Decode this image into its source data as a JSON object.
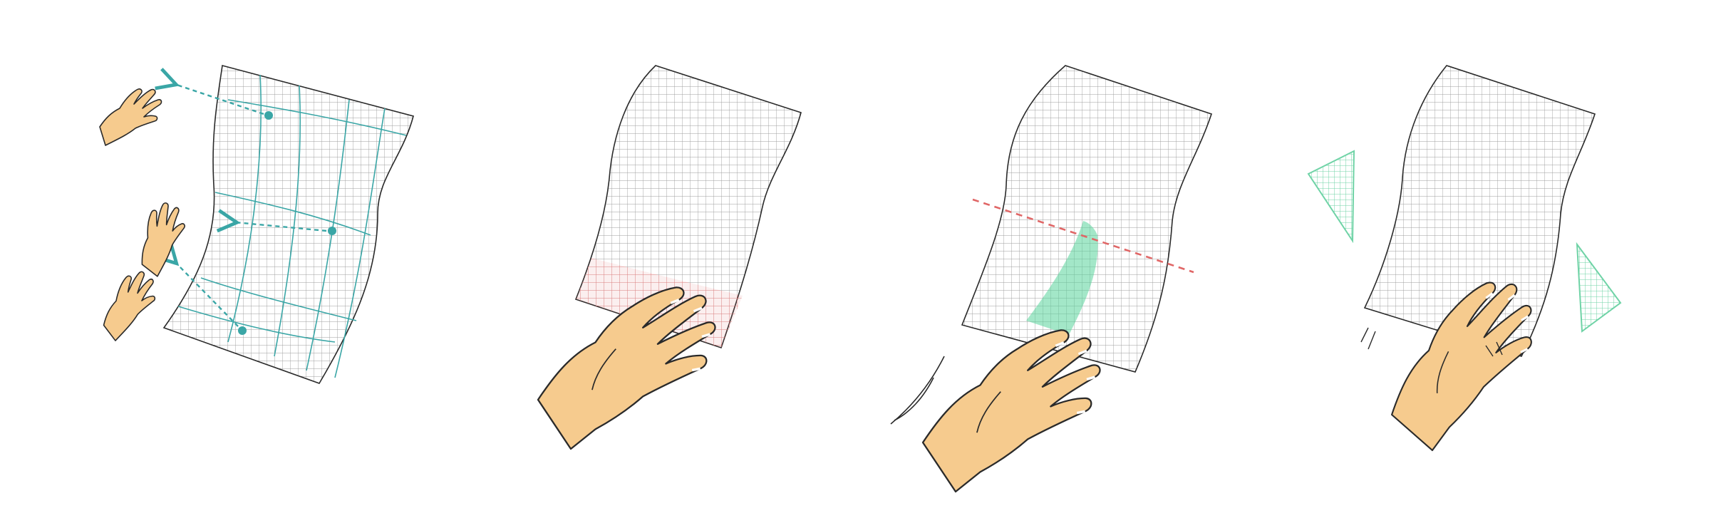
{
  "figure": {
    "panels": [
      {
        "id": "panel-1",
        "grid_color": "#9e9e9e",
        "overlay": "teal-deformation-grid",
        "arrow_color": "#3aa6a6",
        "hand_count": 3
      },
      {
        "id": "panel-2",
        "grid_color": "#9e9e9e",
        "highlight": "bottom-band",
        "highlight_color": "#e07a7a"
      },
      {
        "id": "panel-3",
        "grid_color": "#9e9e9e",
        "highlight": "swipe-trail",
        "highlight_color": "#58d49a",
        "cut_line_color": "#e06666"
      },
      {
        "id": "panel-4",
        "grid_color": "#9e9e9e",
        "fragments": "two-triangles",
        "fragment_color": "#6fd3a6"
      }
    ],
    "colors": {
      "skin": "#f6cb8e",
      "outline": "#2a2a2a",
      "teal": "#3aa6a6",
      "red": "#e06666",
      "green": "#58d49a"
    },
    "icons": [
      "hand-icon",
      "arrow-icon",
      "grid-sheet-icon"
    ]
  }
}
